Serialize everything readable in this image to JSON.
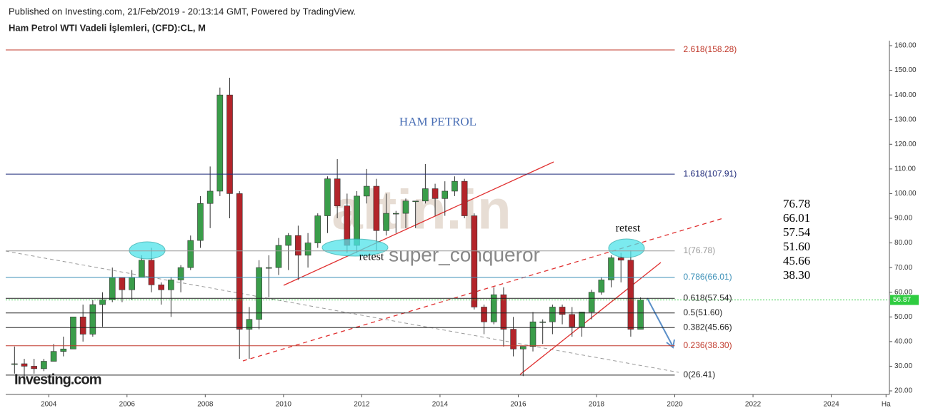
{
  "header": {
    "published": "Published on Investing.com, 21/Feb/2019 - 20:13:14 GMT, Powered by TradingView.",
    "symbol": "Ham Petrol WTI Vadeli İşlemleri, (CFD):CL, M"
  },
  "chart_data": {
    "type": "candlestick",
    "title": "HAM PETROL",
    "annotations": [
      "retest",
      "retest"
    ],
    "watermark": [
      "altin.in",
      "super_conqueror"
    ],
    "logo": "Investing.com",
    "up_color": "#3a9d4a",
    "down_color": "#b3242a",
    "xlim": [
      2002.9,
      2025.45
    ],
    "xticks": [
      2004,
      2006,
      2008,
      2010,
      2012,
      2014,
      2016,
      2018,
      2020,
      2022,
      2024,
      {
        "value": 2025.4,
        "label": "Ha"
      }
    ],
    "ylim": [
      20,
      160
    ],
    "yticks": [
      {
        "value": 20,
        "label": "20.00"
      },
      {
        "value": 30,
        "label": "30.00"
      },
      {
        "value": 40,
        "label": "40.00"
      },
      {
        "value": 50,
        "label": "50.00"
      },
      {
        "value": 60,
        "label": "60.00"
      },
      {
        "value": 70,
        "label": "70.00"
      },
      {
        "value": 80,
        "label": "80.00"
      },
      {
        "value": 90,
        "label": "90.00"
      },
      {
        "value": 100,
        "label": "100.00"
      },
      {
        "value": 110,
        "label": "110.00"
      },
      {
        "value": 120,
        "label": "120.00"
      },
      {
        "value": 130,
        "label": "130.00"
      },
      {
        "value": 140,
        "label": "140.00"
      },
      {
        "value": 150,
        "label": "150.00"
      },
      {
        "value": 160,
        "label": "160.00"
      }
    ],
    "last_price": 56.87,
    "last_color": "#2ecc40",
    "levels": [
      {
        "label": "2.618(158.28)",
        "value": 158.28,
        "color": "#c0392b"
      },
      {
        "label": "1.618(107.91)",
        "value": 107.91,
        "color": "#1f2a7a"
      },
      {
        "label": "1(76.78)",
        "value": 76.78,
        "color": "#999999"
      },
      {
        "label": "0.786(66.01)",
        "value": 66.01,
        "color": "#3a8fb7"
      },
      {
        "label": "0.618(57.54)",
        "value": 57.54,
        "color": "#222222"
      },
      {
        "label": "0.5(51.60)",
        "value": 51.6,
        "color": "#222222"
      },
      {
        "label": "0.382(45.66)",
        "value": 45.66,
        "color": "#222222"
      },
      {
        "label": "0.236(38.30)",
        "value": 38.3,
        "color": "#c0392b"
      },
      {
        "label": "0(26.41)",
        "value": 26.41,
        "color": "#222222"
      }
    ],
    "side_list": [
      76.78,
      66.01,
      57.54,
      {
        "value": 51.6,
        "label": "51.60"
      },
      45.66,
      {
        "value": 38.3,
        "label": "38.30"
      }
    ],
    "x": [
      2003.125,
      2003.375,
      2003.625,
      2003.875,
      2004.125,
      2004.375,
      2004.625,
      2004.875,
      2005.125,
      2005.375,
      2005.625,
      2005.875,
      2006.125,
      2006.375,
      2006.625,
      2006.875,
      2007.125,
      2007.375,
      2007.625,
      2007.875,
      2008.125,
      2008.375,
      2008.625,
      2008.875,
      2009.125,
      2009.375,
      2009.625,
      2009.875,
      2010.125,
      2010.375,
      2010.625,
      2010.875,
      2011.125,
      2011.375,
      2011.625,
      2011.875,
      2012.125,
      2012.375,
      2012.625,
      2012.875,
      2013.125,
      2013.375,
      2013.625,
      2013.875,
      2014.125,
      2014.375,
      2014.625,
      2014.875,
      2015.125,
      2015.375,
      2015.625,
      2015.875,
      2016.125,
      2016.375,
      2016.625,
      2016.875,
      2017.125,
      2017.375,
      2017.625,
      2017.875,
      2018.125,
      2018.375,
      2018.625,
      2018.875,
      2019.125
    ],
    "open": [
      31,
      31,
      30,
      29,
      32,
      36,
      37,
      50,
      43,
      55,
      57,
      66,
      61,
      66,
      73,
      63,
      61,
      65,
      70,
      81,
      96,
      101,
      140,
      100,
      45,
      49,
      70,
      70,
      79,
      83,
      75,
      80,
      91,
      106,
      95,
      79,
      99,
      103,
      85,
      92,
      92,
      97,
      97,
      102,
      98,
      101,
      105,
      91,
      54,
      48,
      59,
      45,
      37,
      38,
      48,
      48,
      54,
      51,
      46,
      52,
      60,
      65,
      74,
      73,
      45
    ],
    "high": [
      38,
      33,
      33,
      33,
      39,
      42,
      50,
      55,
      57,
      60,
      70,
      66,
      69,
      75,
      78,
      64,
      66,
      71,
      83,
      99,
      111,
      143,
      147,
      101,
      54,
      73,
      75,
      82,
      84,
      87,
      84,
      92,
      107,
      114,
      100,
      101,
      110,
      106,
      100,
      93,
      98,
      97,
      112,
      104,
      105,
      107,
      106,
      92,
      55,
      62,
      62,
      50,
      38,
      52,
      49,
      55,
      55,
      54,
      52,
      61,
      66,
      75,
      76,
      77,
      57.9
    ],
    "low": [
      27,
      25,
      27,
      28,
      32,
      34,
      37,
      40,
      42,
      46,
      56,
      56,
      57,
      66,
      60,
      55,
      50,
      60,
      69,
      78,
      86,
      99,
      90,
      33,
      33,
      45,
      58,
      67,
      69,
      65,
      70,
      78,
      84,
      90,
      76,
      76,
      96,
      77,
      83,
      84,
      86,
      86,
      96,
      91,
      91,
      99,
      90,
      53,
      43,
      47,
      38,
      34,
      26,
      36,
      39,
      43,
      47,
      42,
      42,
      49,
      59,
      62,
      64,
      42,
      45
    ],
    "close": [
      31,
      30,
      29,
      32,
      36,
      37,
      50,
      43,
      55,
      57,
      66,
      61,
      66,
      73,
      63,
      61,
      65,
      70,
      81,
      96,
      101,
      140,
      100,
      45,
      49,
      70,
      70,
      79,
      83,
      75,
      80,
      91,
      106,
      95,
      79,
      99,
      103,
      85,
      92,
      92,
      97,
      97,
      102,
      98,
      101,
      105,
      91,
      54,
      48,
      59,
      45,
      37,
      38,
      48,
      48,
      54,
      51,
      46,
      52,
      60,
      65,
      74,
      73,
      45,
      56.87
    ]
  }
}
